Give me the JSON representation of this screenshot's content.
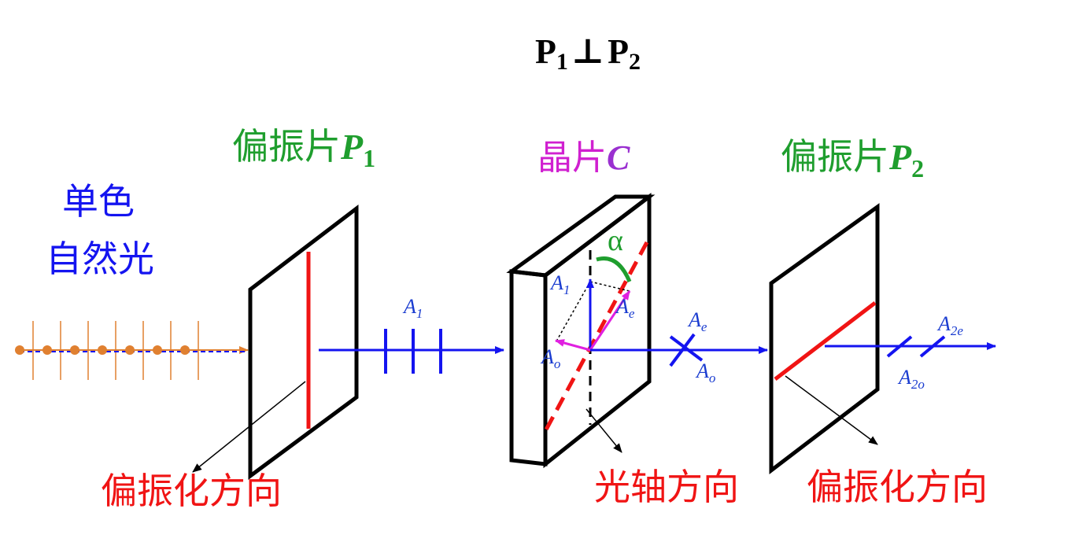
{
  "title": {
    "p1": "P",
    "s1": "1",
    "perp": "⊥",
    "p2": "P",
    "s2": "2"
  },
  "labels": {
    "polarizer1": {
      "text": "偏振片",
      "symbol": "P",
      "sub": "1"
    },
    "crystal": {
      "text": "晶片",
      "symbol": "C"
    },
    "polarizer2": {
      "text": "偏振片",
      "symbol": "P",
      "sub": "2"
    },
    "source": [
      "单色",
      "自然光"
    ],
    "p1_direction": "偏振化方向",
    "optic_axis": "光轴方向",
    "p2_direction": "偏振化方向"
  },
  "amplitudes": {
    "a1_beam": {
      "symbol": "A",
      "sub": "1"
    },
    "a1_crystal": {
      "symbol": "A",
      "sub": "1"
    },
    "ae_crystal": {
      "symbol": "A",
      "sub": "e"
    },
    "ao_crystal": {
      "symbol": "A",
      "sub": "o"
    },
    "ae_beam": {
      "symbol": "A",
      "sub": "e"
    },
    "ao_beam": {
      "symbol": "A",
      "sub": "o"
    },
    "a2e": {
      "symbol": "A",
      "sub": "2e"
    },
    "a2o": {
      "symbol": "A",
      "sub": "2o"
    }
  },
  "angle": "α"
}
